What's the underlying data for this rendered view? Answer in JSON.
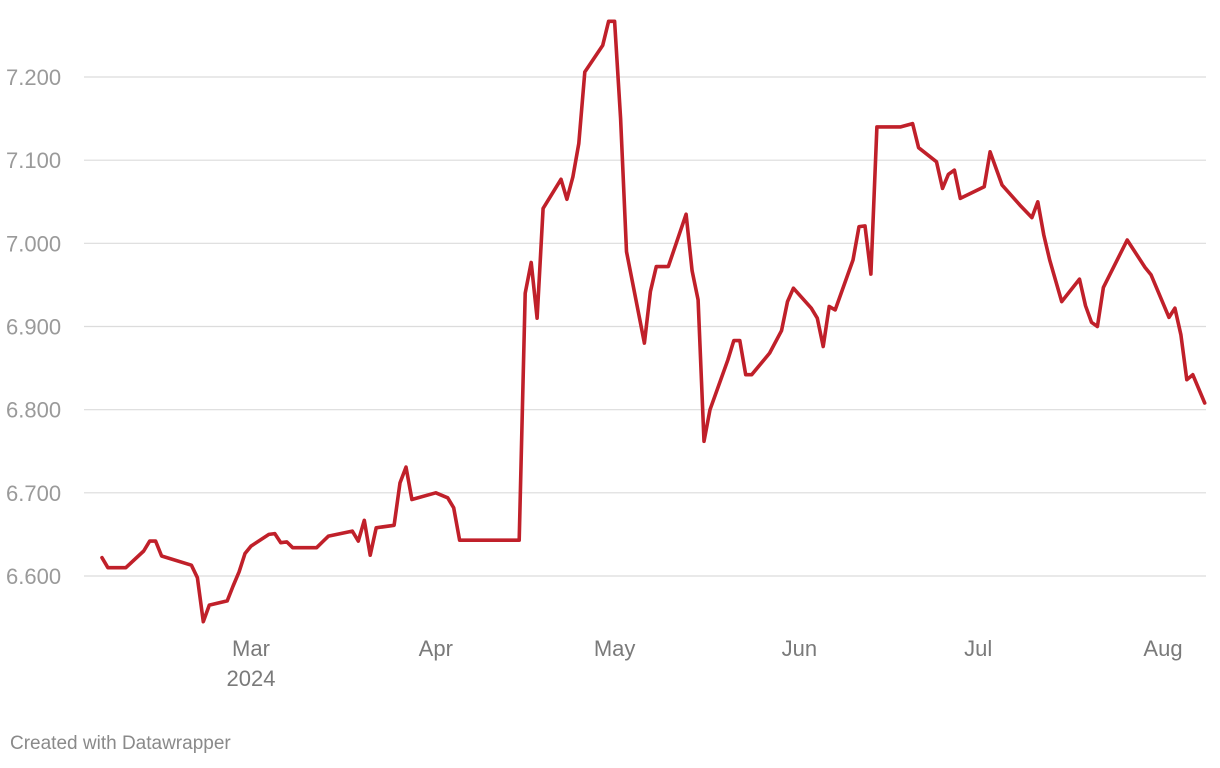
{
  "chart_data": {
    "type": "line",
    "title": "",
    "xlabel": "",
    "ylabel": "",
    "ylim": [
      6.54,
      7.27
    ],
    "xlim": [
      "2024-02-03",
      "2024-08-09"
    ],
    "grid": true,
    "y_ticks": [
      {
        "value": 6.6,
        "label": "6.600"
      },
      {
        "value": 6.7,
        "label": "6.700"
      },
      {
        "value": 6.8,
        "label": "6.800"
      },
      {
        "value": 6.9,
        "label": "6.900"
      },
      {
        "value": 7.0,
        "label": "7.000"
      },
      {
        "value": 7.1,
        "label": "7.100"
      },
      {
        "value": 7.2,
        "label": "7.200"
      }
    ],
    "x_ticks": [
      {
        "date": "2024-03-01",
        "label": "Mar",
        "sublabel": "2024"
      },
      {
        "date": "2024-04-01",
        "label": "Apr",
        "sublabel": ""
      },
      {
        "date": "2024-05-01",
        "label": "May",
        "sublabel": ""
      },
      {
        "date": "2024-06-01",
        "label": "Jun",
        "sublabel": ""
      },
      {
        "date": "2024-07-01",
        "label": "Jul",
        "sublabel": ""
      },
      {
        "date": "2024-08-01",
        "label": "Aug",
        "sublabel": ""
      }
    ],
    "series": [
      {
        "color": "#c0202a",
        "points": [
          [
            "2024-02-05",
            6.622
          ],
          [
            "2024-02-06",
            6.61
          ],
          [
            "2024-02-09",
            6.61
          ],
          [
            "2024-02-12",
            6.63
          ],
          [
            "2024-02-13",
            6.642
          ],
          [
            "2024-02-14",
            6.642
          ],
          [
            "2024-02-15",
            6.624
          ],
          [
            "2024-02-20",
            6.613
          ],
          [
            "2024-02-21",
            6.598
          ],
          [
            "2024-02-22",
            6.545
          ],
          [
            "2024-02-23",
            6.565
          ],
          [
            "2024-02-26",
            6.57
          ],
          [
            "2024-02-27",
            6.588
          ],
          [
            "2024-02-28",
            6.605
          ],
          [
            "2024-02-29",
            6.627
          ],
          [
            "2024-03-01",
            6.636
          ],
          [
            "2024-03-04",
            6.65
          ],
          [
            "2024-03-05",
            6.651
          ],
          [
            "2024-03-06",
            6.64
          ],
          [
            "2024-03-07",
            6.641
          ],
          [
            "2024-03-08",
            6.634
          ],
          [
            "2024-03-11",
            6.634
          ],
          [
            "2024-03-12",
            6.634
          ],
          [
            "2024-03-13",
            6.641
          ],
          [
            "2024-03-14",
            6.648
          ],
          [
            "2024-03-18",
            6.654
          ],
          [
            "2024-03-19",
            6.642
          ],
          [
            "2024-03-20",
            6.667
          ],
          [
            "2024-03-21",
            6.625
          ],
          [
            "2024-03-22",
            6.658
          ],
          [
            "2024-03-25",
            6.661
          ],
          [
            "2024-03-26",
            6.712
          ],
          [
            "2024-03-27",
            6.731
          ],
          [
            "2024-03-28",
            6.692
          ],
          [
            "2024-04-01",
            6.7
          ],
          [
            "2024-04-02",
            6.697
          ],
          [
            "2024-04-03",
            6.694
          ],
          [
            "2024-04-04",
            6.682
          ],
          [
            "2024-04-05",
            6.643
          ],
          [
            "2024-04-15",
            6.643
          ],
          [
            "2024-04-16",
            6.94
          ],
          [
            "2024-04-17",
            6.977
          ],
          [
            "2024-04-18",
            6.91
          ],
          [
            "2024-04-19",
            7.042
          ],
          [
            "2024-04-22",
            7.077
          ],
          [
            "2024-04-23",
            7.053
          ],
          [
            "2024-04-24",
            7.08
          ],
          [
            "2024-04-25",
            7.12
          ],
          [
            "2024-04-26",
            7.206
          ],
          [
            "2024-04-29",
            7.238
          ],
          [
            "2024-04-30",
            7.267
          ],
          [
            "2024-05-01",
            7.267
          ],
          [
            "2024-05-02",
            7.15
          ],
          [
            "2024-05-03",
            6.99
          ],
          [
            "2024-05-06",
            6.88
          ],
          [
            "2024-05-07",
            6.942
          ],
          [
            "2024-05-08",
            6.972
          ],
          [
            "2024-05-09",
            6.972
          ],
          [
            "2024-05-10",
            6.972
          ],
          [
            "2024-05-13",
            7.035
          ],
          [
            "2024-05-14",
            6.967
          ],
          [
            "2024-05-15",
            6.932
          ],
          [
            "2024-05-16",
            6.762
          ],
          [
            "2024-05-17",
            6.8
          ],
          [
            "2024-05-20",
            6.86
          ],
          [
            "2024-05-21",
            6.883
          ],
          [
            "2024-05-22",
            6.883
          ],
          [
            "2024-05-23",
            6.842
          ],
          [
            "2024-05-24",
            6.842
          ],
          [
            "2024-05-27",
            6.868
          ],
          [
            "2024-05-29",
            6.895
          ],
          [
            "2024-05-30",
            6.93
          ],
          [
            "2024-05-31",
            6.946
          ],
          [
            "2024-06-03",
            6.922
          ],
          [
            "2024-06-04",
            6.91
          ],
          [
            "2024-06-05",
            6.876
          ],
          [
            "2024-06-06",
            6.924
          ],
          [
            "2024-06-07",
            6.92
          ],
          [
            "2024-06-10",
            6.98
          ],
          [
            "2024-06-11",
            7.02
          ],
          [
            "2024-06-12",
            7.021
          ],
          [
            "2024-06-13",
            6.963
          ],
          [
            "2024-06-14",
            7.14
          ],
          [
            "2024-06-18",
            7.14
          ],
          [
            "2024-06-20",
            7.144
          ],
          [
            "2024-06-21",
            7.115
          ],
          [
            "2024-06-24",
            7.098
          ],
          [
            "2024-06-25",
            7.066
          ],
          [
            "2024-06-26",
            7.083
          ],
          [
            "2024-06-27",
            7.088
          ],
          [
            "2024-06-28",
            7.054
          ],
          [
            "2024-07-02",
            7.068
          ],
          [
            "2024-07-03",
            7.11
          ],
          [
            "2024-07-04",
            7.09
          ],
          [
            "2024-07-05",
            7.07
          ],
          [
            "2024-07-08",
            7.046
          ],
          [
            "2024-07-10",
            7.031
          ],
          [
            "2024-07-11",
            7.05
          ],
          [
            "2024-07-12",
            7.01
          ],
          [
            "2024-07-13",
            6.98
          ],
          [
            "2024-07-15",
            6.93
          ],
          [
            "2024-07-18",
            6.957
          ],
          [
            "2024-07-19",
            6.925
          ],
          [
            "2024-07-20",
            6.905
          ],
          [
            "2024-07-21",
            6.9
          ],
          [
            "2024-07-22",
            6.947
          ],
          [
            "2024-07-26",
            7.004
          ],
          [
            "2024-07-29",
            6.971
          ],
          [
            "2024-07-30",
            6.962
          ],
          [
            "2024-08-02",
            6.911
          ],
          [
            "2024-08-03",
            6.922
          ],
          [
            "2024-08-04",
            6.89
          ],
          [
            "2024-08-05",
            6.836
          ],
          [
            "2024-08-06",
            6.842
          ],
          [
            "2024-08-08",
            6.808
          ]
        ]
      }
    ]
  },
  "footer": {
    "credit": "Created with Datawrapper"
  }
}
